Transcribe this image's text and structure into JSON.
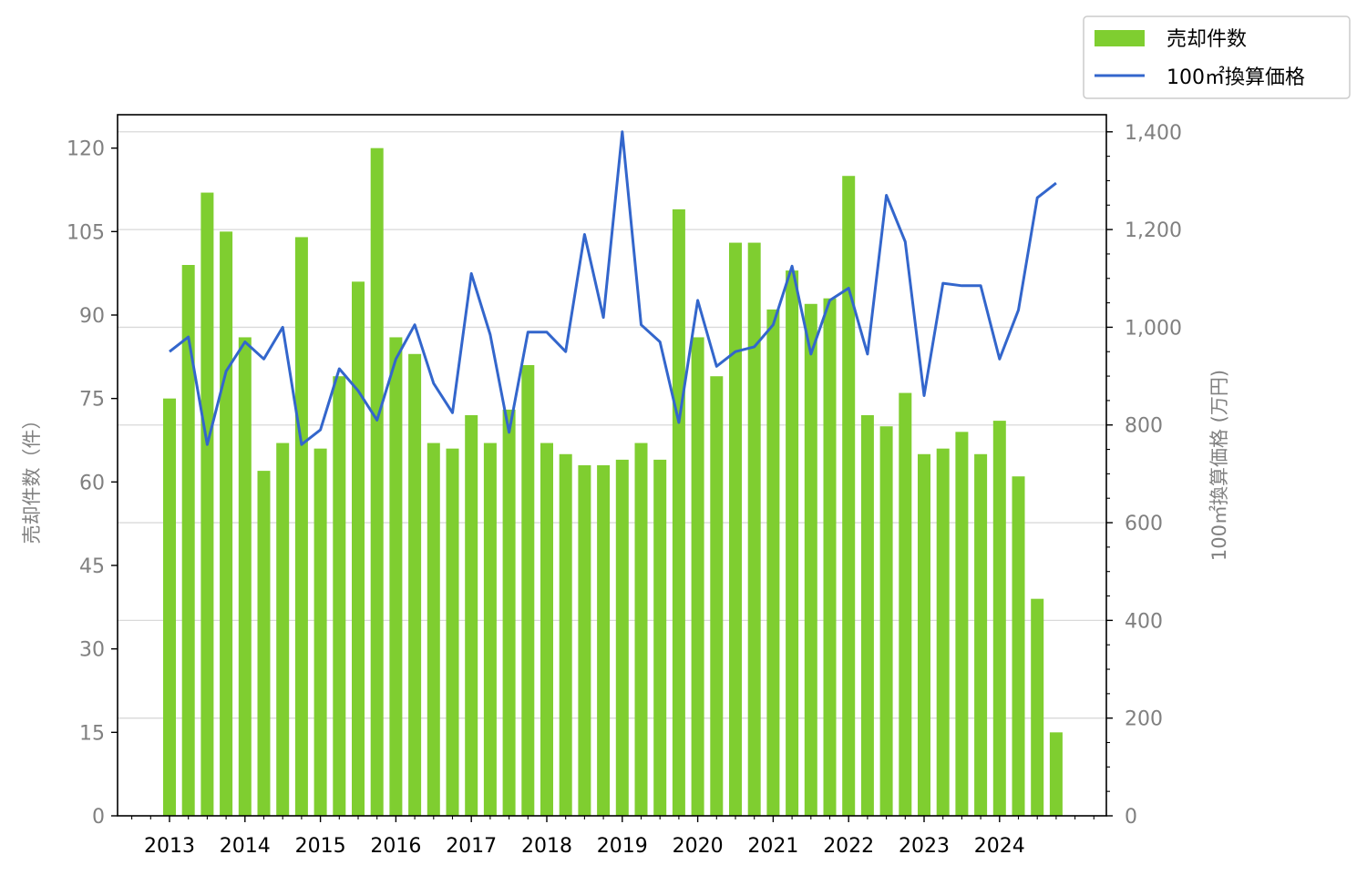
{
  "chart_data": {
    "type": "bar",
    "x_tick_labels": [
      "2013",
      "2014",
      "2015",
      "2016",
      "2017",
      "2018",
      "2019",
      "2020",
      "2021",
      "2022",
      "2023",
      "2024"
    ],
    "left_axis": {
      "label": "売却件数（件）",
      "ylim": [
        0,
        126
      ],
      "ticks": [
        "0",
        "15",
        "30",
        "45",
        "60",
        "75",
        "90",
        "105",
        "120"
      ],
      "tick_values": [
        0,
        15,
        30,
        45,
        60,
        75,
        90,
        105,
        120
      ]
    },
    "right_axis": {
      "label": "100㎡換算価格 (万円)",
      "ylim": [
        0,
        1435
      ],
      "ticks": [
        "0",
        "200",
        "400",
        "600",
        "800",
        "1,000",
        "1,200",
        "1,400"
      ],
      "tick_values": [
        0,
        200,
        400,
        600,
        800,
        1000,
        1200,
        1400
      ]
    },
    "legend_position": "top-right",
    "grid": "horizontal",
    "series": [
      {
        "name": "売却件数",
        "kind": "bar",
        "axis": "left",
        "color": "#7fce30",
        "values": [
          75,
          99,
          112,
          105,
          86,
          62,
          67,
          104,
          66,
          79,
          96,
          120,
          86,
          83,
          67,
          66,
          72,
          67,
          73,
          81,
          67,
          65,
          63,
          63,
          64,
          67,
          64,
          109,
          86,
          79,
          103,
          103,
          91,
          98,
          92,
          93,
          115,
          72,
          70,
          76,
          65,
          66,
          69,
          65,
          71,
          61,
          39,
          15
        ]
      },
      {
        "name": "100㎡換算価格",
        "kind": "line",
        "axis": "right",
        "color": "#3366cc",
        "values": [
          950,
          980,
          760,
          910,
          970,
          935,
          1000,
          760,
          790,
          915,
          870,
          810,
          935,
          1005,
          885,
          825,
          1110,
          985,
          785,
          990,
          990,
          950,
          1190,
          1020,
          1400,
          1005,
          970,
          805,
          1055,
          920,
          950,
          960,
          1005,
          1125,
          945,
          1055,
          1080,
          945,
          1270,
          1175,
          860,
          1090,
          1085,
          1085,
          935,
          1035,
          1265,
          1295
        ]
      }
    ]
  }
}
